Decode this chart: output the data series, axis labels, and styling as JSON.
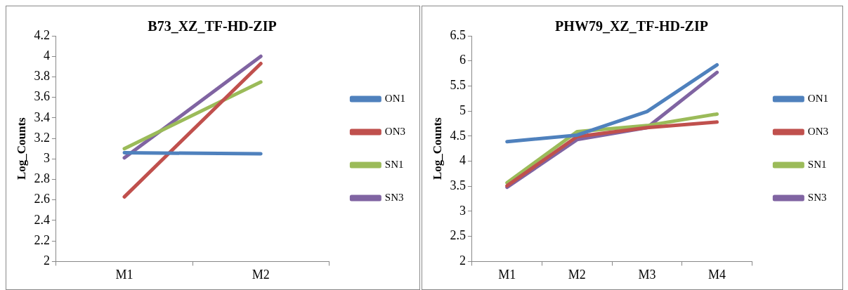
{
  "chart_data": [
    {
      "type": "line",
      "title": "B73_XZ_TF-HD-ZIP",
      "ylabel": "Log_Counts",
      "categories": [
        "M1",
        "M2"
      ],
      "ylim": [
        2,
        4.2
      ],
      "yticks": [
        {
          "value": 2,
          "label": "2"
        },
        {
          "value": 2.2,
          "label": "2.2"
        },
        {
          "value": 2.4,
          "label": "2.4"
        },
        {
          "value": 2.6,
          "label": "2.6"
        },
        {
          "value": 2.8,
          "label": "2.8"
        },
        {
          "value": 3,
          "label": "3"
        },
        {
          "value": 3.2,
          "label": "3.2"
        },
        {
          "value": 3.4,
          "label": "3.4"
        },
        {
          "value": 3.6,
          "label": "3.6"
        },
        {
          "value": 3.8,
          "label": "3.8"
        },
        {
          "value": 4,
          "label": "4"
        },
        {
          "value": 4.2,
          "label": "4.2"
        }
      ],
      "grid": false,
      "legend": "right",
      "marker": "none",
      "line_style": "solid",
      "series": [
        {
          "name": "ON1",
          "color": "#4f81bd",
          "values": [
            3.06,
            3.05
          ]
        },
        {
          "name": "ON3",
          "color": "#c0504d",
          "values": [
            2.63,
            3.93
          ]
        },
        {
          "name": "SN1",
          "color": "#9bbb59",
          "values": [
            3.1,
            3.75
          ]
        },
        {
          "name": "SN3",
          "color": "#8064a2",
          "values": [
            3.01,
            4.0
          ]
        }
      ]
    },
    {
      "type": "line",
      "title": "PHW79_XZ_TF-HD-ZIP",
      "ylabel": "Log_Counts",
      "categories": [
        "M1",
        "M2",
        "M3",
        "M4"
      ],
      "ylim": [
        2,
        6.5
      ],
      "yticks": [
        {
          "value": 2,
          "label": "2"
        },
        {
          "value": 2.5,
          "label": "2.5"
        },
        {
          "value": 3,
          "label": "3"
        },
        {
          "value": 3.5,
          "label": "3.5"
        },
        {
          "value": 4,
          "label": "4"
        },
        {
          "value": 4.5,
          "label": "4.5"
        },
        {
          "value": 5,
          "label": "5"
        },
        {
          "value": 5.5,
          "label": "5.5"
        },
        {
          "value": 6,
          "label": "6"
        },
        {
          "value": 6.5,
          "label": "6.5"
        }
      ],
      "grid": false,
      "legend": "right",
      "marker": "none",
      "line_style": "solid",
      "series": [
        {
          "name": "ON1",
          "color": "#4f81bd",
          "values": [
            4.39,
            4.52,
            4.99,
            5.92
          ]
        },
        {
          "name": "ON3",
          "color": "#c0504d",
          "values": [
            3.51,
            4.49,
            4.67,
            4.78
          ]
        },
        {
          "name": "SN1",
          "color": "#9bbb59",
          "values": [
            3.57,
            4.59,
            4.71,
            4.94
          ]
        },
        {
          "name": "SN3",
          "color": "#8064a2",
          "values": [
            3.48,
            4.43,
            4.67,
            5.77
          ]
        }
      ]
    }
  ]
}
